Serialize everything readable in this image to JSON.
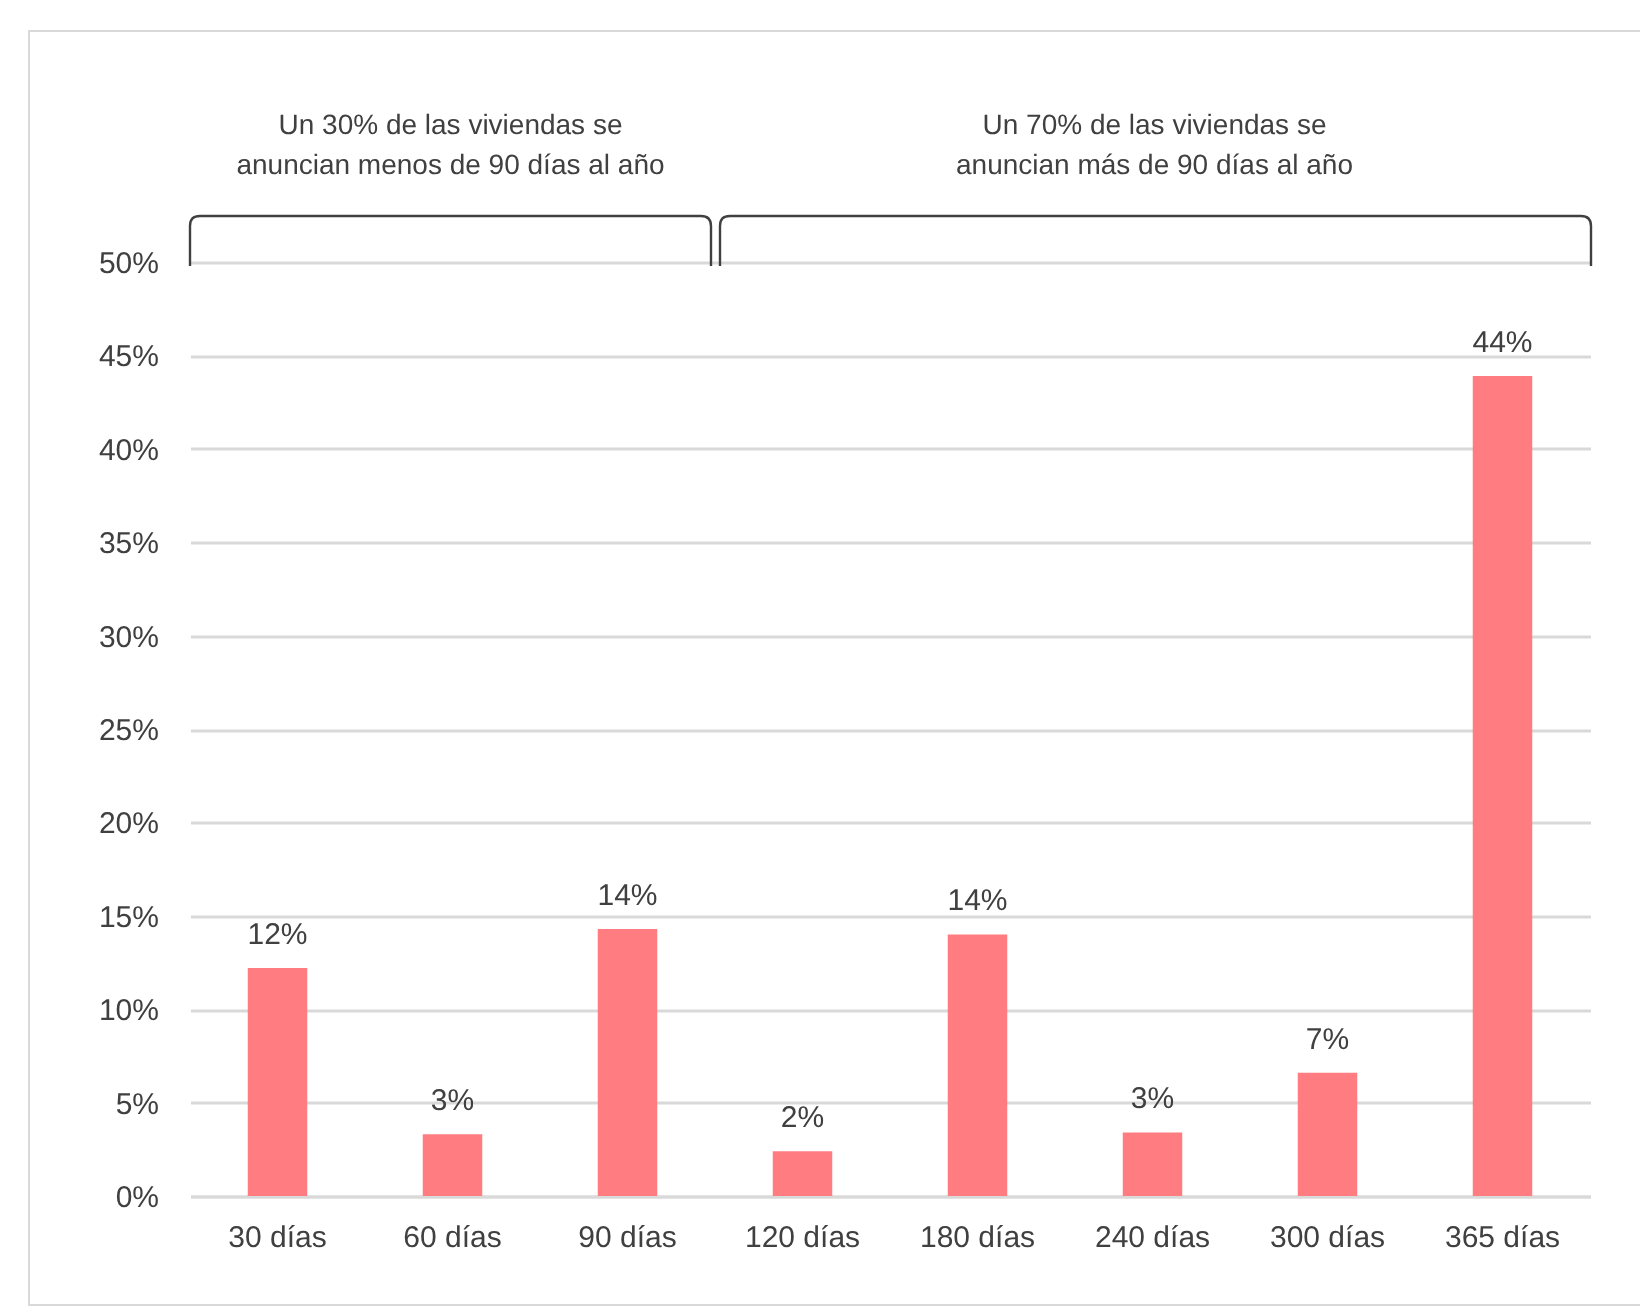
{
  "chart_data": {
    "type": "bar",
    "categories": [
      "30 días",
      "60 días",
      "90 días",
      "120 días",
      "180 días",
      "240 días",
      "300 días",
      "365 días"
    ],
    "values": [
      12.2,
      3.3,
      14.3,
      2.4,
      14.0,
      3.4,
      6.6,
      43.9
    ],
    "value_labels": [
      "12%",
      "3%",
      "14%",
      "2%",
      "14%",
      "3%",
      "7%",
      "44%"
    ],
    "color": "#ff7c80",
    "ylim": [
      0,
      50
    ],
    "yticks": [
      {
        "value": 0,
        "label": "0%"
      },
      {
        "value": 5,
        "label": "5%"
      },
      {
        "value": 10,
        "label": "10%"
      },
      {
        "value": 15,
        "label": "15%"
      },
      {
        "value": 20,
        "label": "20%"
      },
      {
        "value": 25,
        "label": "25%"
      },
      {
        "value": 30,
        "label": "30%"
      },
      {
        "value": 35,
        "label": "35%"
      },
      {
        "value": 40,
        "label": "40%"
      },
      {
        "value": 45,
        "label": "45%"
      },
      {
        "value": 50,
        "label": "50%"
      }
    ],
    "grid": "y",
    "annotations": [
      "Un 30% de las viviendas se anuncian menos de 90 días al año",
      "Un 70% de las viviendas se anuncian más de 90 días al año"
    ]
  }
}
